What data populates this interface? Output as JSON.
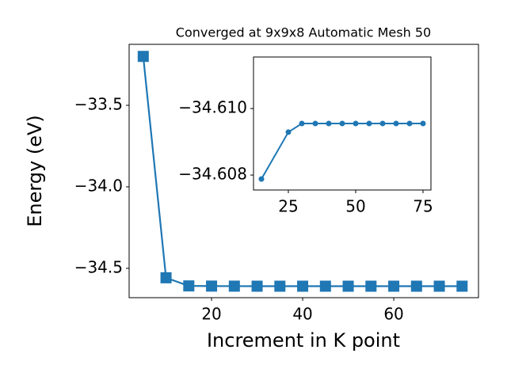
{
  "chart_data": [
    {
      "type": "line",
      "title": "Converged at 9x9x8 Automatic Mesh 50",
      "x_label": "Increment in K point",
      "y_label": "Energy (eV)",
      "x": [
        5,
        10,
        15,
        20,
        25,
        30,
        35,
        40,
        45,
        50,
        55,
        60,
        65,
        70,
        75
      ],
      "series": [
        {
          "color": "#1f77b4",
          "marker": "square",
          "values": [
            -33.2,
            -34.558,
            -34.6079,
            -34.609,
            -34.6093,
            -34.6096,
            -34.6096,
            -34.6096,
            -34.6096,
            -34.6096,
            -34.6096,
            -34.6096,
            -34.6096,
            -34.6096,
            -34.6096
          ]
        }
      ],
      "xlim": [
        1.9,
        78.6
      ],
      "ylim": [
        -34.68,
        -33.126
      ],
      "xticks": [
        20,
        40,
        60
      ],
      "yticks": [
        {
          "value": -33.5,
          "label": "−33.5"
        },
        {
          "value": -34.0,
          "label": "−34.0"
        },
        {
          "value": -34.5,
          "label": "−34.5"
        }
      ]
    },
    {
      "type": "line",
      "x": [
        15,
        25,
        30,
        35,
        40,
        45,
        50,
        55,
        60,
        65,
        70,
        75
      ],
      "series": [
        {
          "color": "#1f77b4",
          "marker": "circle",
          "values": [
            -34.60788,
            -34.60929,
            -34.60955,
            -34.60955,
            -34.60955,
            -34.60955,
            -34.60955,
            -34.60955,
            -34.60955,
            -34.60955,
            -34.60955,
            -34.60955
          ]
        }
      ],
      "xlim": [
        12.06,
        77.94
      ],
      "ylim": [
        -34.60755,
        -34.61155
      ],
      "xticks": [
        25,
        50,
        75
      ],
      "yticks": [
        {
          "value": -34.61,
          "label": "−34.610"
        },
        {
          "value": -34.608,
          "label": "−34.608"
        }
      ]
    }
  ]
}
